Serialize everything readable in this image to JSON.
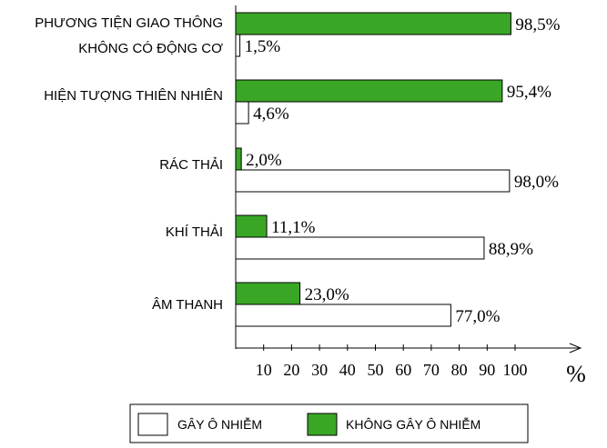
{
  "chart_data": {
    "type": "bar",
    "orientation": "horizontal",
    "categories": [
      [
        "PHƯƠNG TIỆN GIAO THÔNG",
        "KHÔNG CÓ ĐỘNG CƠ"
      ],
      [
        "HIỆN TƯỢNG THIÊN NHIÊN"
      ],
      [
        "RÁC THẢI"
      ],
      [
        "KHÍ THẢI"
      ],
      [
        "ÂM THANH"
      ]
    ],
    "series": [
      {
        "name": "KHÔNG GÂY Ô NHIỄM",
        "color": "#3aa626",
        "values": [
          98.5,
          95.4,
          2.0,
          11.1,
          23.0
        ],
        "labels": [
          "98,5%",
          "95,4%",
          "2,0%",
          "11,1%",
          "23,0%"
        ]
      },
      {
        "name": "GÂY Ô NHIỄM",
        "color": "#ffffff",
        "values": [
          1.5,
          4.6,
          98.0,
          88.9,
          77.0
        ],
        "labels": [
          "1,5%",
          "4,6%",
          "98,0%",
          "88,9%",
          "77,0%"
        ]
      }
    ],
    "x_ticks": [
      "10",
      "20",
      "30",
      "40",
      "50",
      "60",
      "70",
      "80",
      "90",
      "100"
    ],
    "x_unit": "%",
    "xlim": [
      0,
      100
    ],
    "grid": false,
    "legend_position": "bottom",
    "legend": [
      "GÂY Ô NHIỄM",
      "KHÔNG GÂY Ô NHIỄM"
    ]
  }
}
